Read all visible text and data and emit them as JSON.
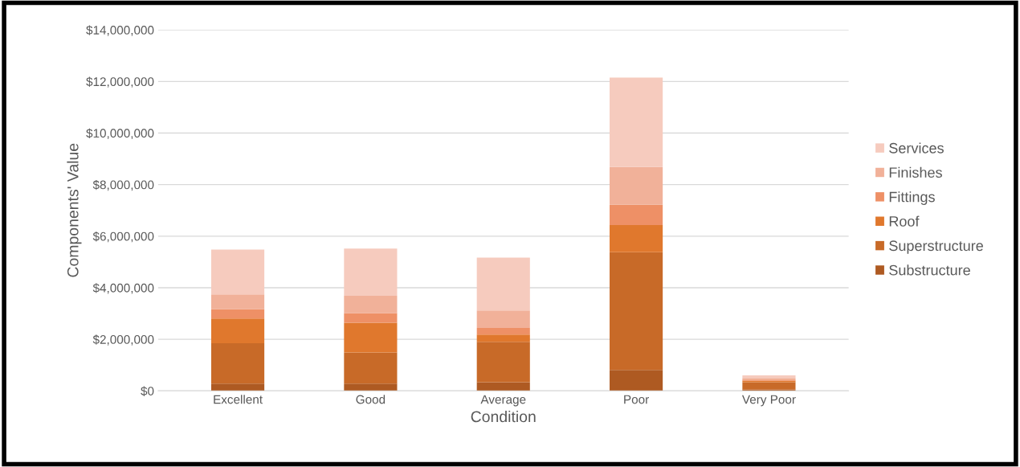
{
  "chart_data": {
    "type": "bar",
    "stacked": true,
    "xlabel": "Condition",
    "ylabel": "Components' Value",
    "categories": [
      "Excellent",
      "Good",
      "Average",
      "Poor",
      "Very Poor"
    ],
    "series": [
      {
        "name": "Substructure",
        "color": "#ae5a22",
        "values": [
          280000,
          280000,
          340000,
          810000,
          50000
        ]
      },
      {
        "name": "Superstructure",
        "color": "#c86a28",
        "values": [
          1570000,
          1210000,
          1560000,
          4570000,
          290000
        ]
      },
      {
        "name": "Roof",
        "color": "#e0782d",
        "values": [
          960000,
          1150000,
          280000,
          1050000,
          50000
        ]
      },
      {
        "name": "Fittings",
        "color": "#ee9066",
        "values": [
          360000,
          380000,
          260000,
          790000,
          50000
        ]
      },
      {
        "name": "Finishes",
        "color": "#f1b199",
        "values": [
          570000,
          670000,
          680000,
          1460000,
          60000
        ]
      },
      {
        "name": "Services",
        "color": "#f6cbbe",
        "values": [
          1740000,
          1830000,
          2050000,
          3470000,
          100000
        ]
      }
    ],
    "ylim": [
      0,
      14000000
    ],
    "yticks": [
      {
        "value": 0,
        "label": "$0"
      },
      {
        "value": 2000000,
        "label": "$2,000,000"
      },
      {
        "value": 4000000,
        "label": "$4,000,000"
      },
      {
        "value": 6000000,
        "label": "$6,000,000"
      },
      {
        "value": 8000000,
        "label": "$8,000,000"
      },
      {
        "value": 10000000,
        "label": "$10,000,000"
      },
      {
        "value": 12000000,
        "label": "$12,000,000"
      },
      {
        "value": 14000000,
        "label": "$14,000,000"
      }
    ],
    "grid": "y",
    "legend": "right"
  }
}
